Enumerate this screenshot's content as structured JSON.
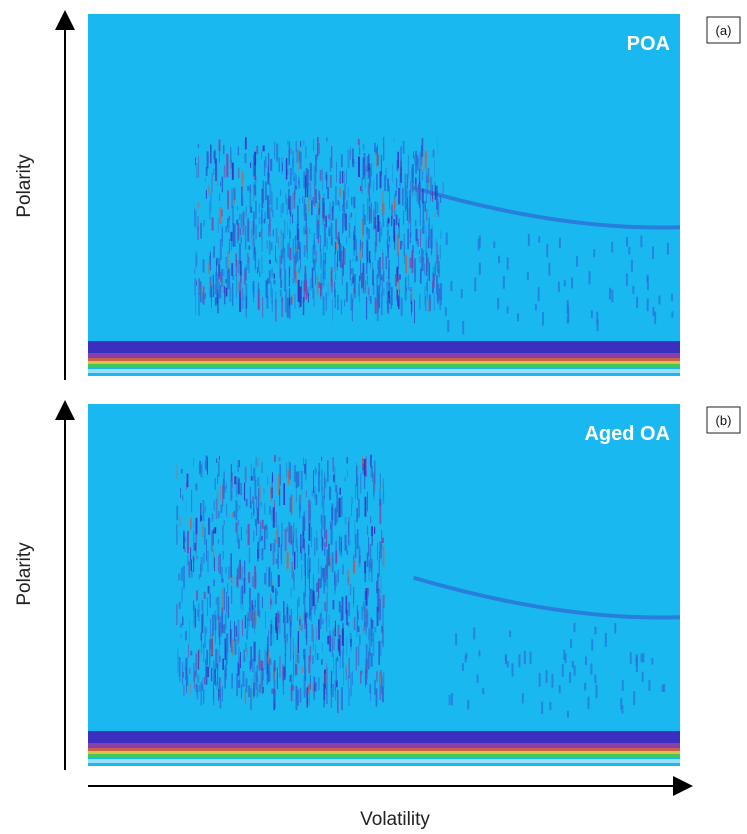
{
  "chart_data": [
    {
      "type": "heatmap",
      "panel_label": "(a)",
      "title": "POA",
      "xlabel": "",
      "ylabel": "Polarity",
      "background_color": "#1ab8f0",
      "colormap": [
        "#1ab8f0",
        "#2a6fd8",
        "#3a2fbf",
        "#8a3fa8",
        "#c8604a",
        "#e0c040",
        "#40c860"
      ],
      "features": {
        "volatility_range_cluster": [
          0.18,
          0.6
        ],
        "relative_polarity_cluster": [
          0.1,
          0.55
        ],
        "diagonal_streak_right": true,
        "baseline_bands": true
      }
    },
    {
      "type": "heatmap",
      "panel_label": "(b)",
      "title": "Aged OA",
      "xlabel": "Volatility",
      "ylabel": "Polarity",
      "background_color": "#1ab8f0",
      "colormap": [
        "#1ab8f0",
        "#2a6fd8",
        "#3a2fbf",
        "#8a3fa8",
        "#c8604a",
        "#e0c040",
        "#40c860"
      ],
      "features": {
        "volatility_range_cluster": [
          0.15,
          0.5
        ],
        "relative_polarity_cluster": [
          0.1,
          0.75
        ],
        "diagonal_streak_right": true,
        "baseline_bands": true
      }
    }
  ],
  "axis_labels": {
    "x": "Volatility",
    "y_top": "Polarity",
    "y_bottom": "Polarity"
  }
}
